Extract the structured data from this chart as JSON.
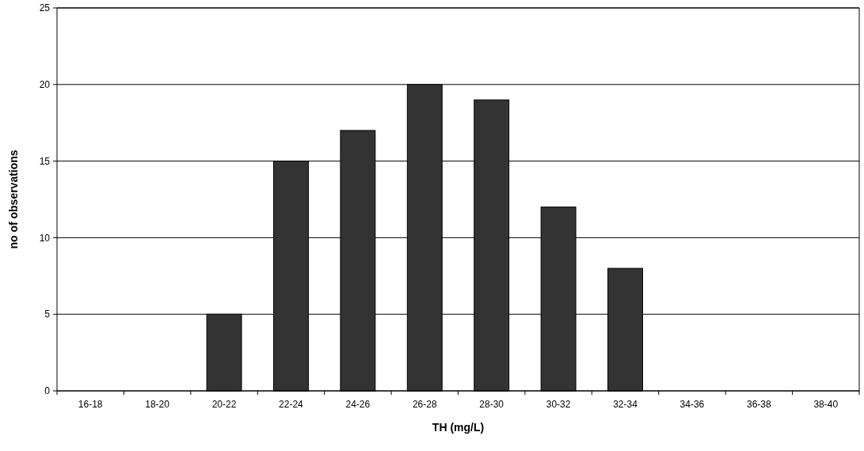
{
  "chart_data": {
    "type": "bar",
    "xlabel": "TH (mg/L)",
    "ylabel": "no of observations",
    "categories": [
      "16-18",
      "18-20",
      "20-22",
      "22-24",
      "24-26",
      "26-28",
      "28-30",
      "30-32",
      "32-34",
      "34-36",
      "36-38",
      "38-40"
    ],
    "values": [
      0,
      0,
      5,
      15,
      17,
      20,
      19,
      12,
      8,
      0,
      0,
      0
    ],
    "color": "#333333",
    "ylim": [
      0,
      25
    ],
    "yticks": [
      0,
      5,
      10,
      15,
      20,
      25
    ],
    "grid": "y"
  }
}
